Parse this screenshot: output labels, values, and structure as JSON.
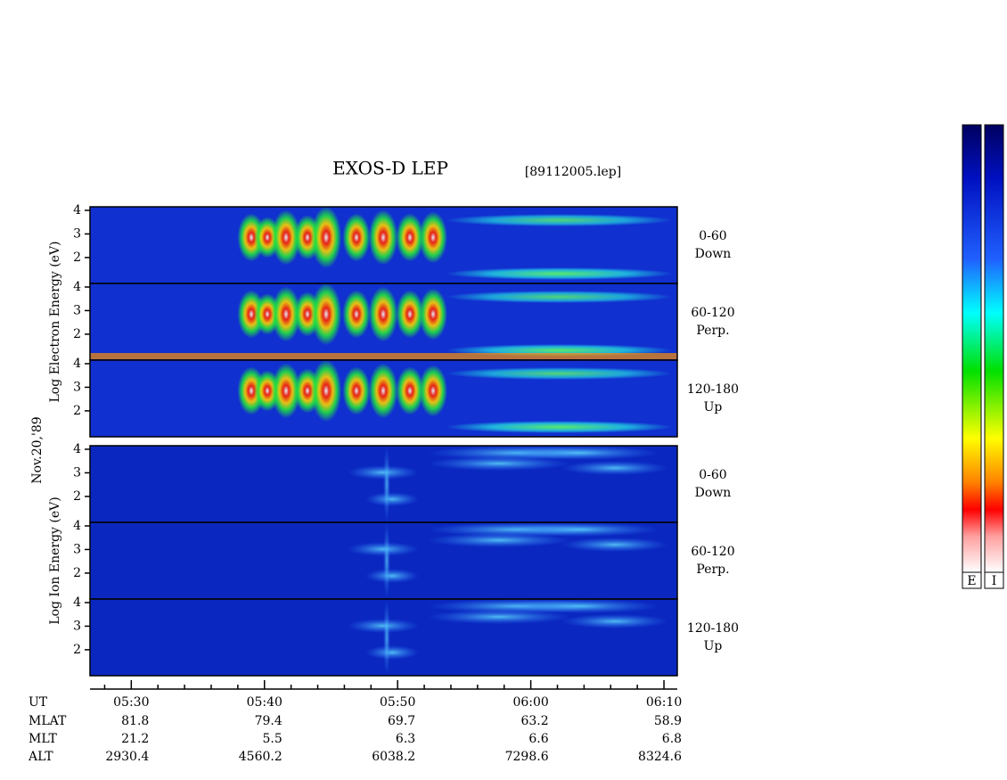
{
  "chart_data": {
    "type": "spectrogram",
    "title": "EXOS-D LEP",
    "file_label": "[89112005.lep]",
    "date_label": "Nov.20,'89",
    "ylim": [
      0.9,
      4.15
    ],
    "yticks": [
      2,
      3,
      4
    ],
    "xlim": [
      326.9,
      371
    ],
    "xticks": [
      {
        "value": 330,
        "label": "05:30"
      },
      {
        "value": 340,
        "label": "05:40"
      },
      {
        "value": 350,
        "label": "05:50"
      },
      {
        "value": 360,
        "label": "06:00"
      },
      {
        "value": 370,
        "label": "06:10"
      }
    ],
    "xminor_ticks": [
      328,
      332,
      334,
      336,
      338,
      342,
      344,
      346,
      348,
      352,
      354,
      356,
      358,
      362,
      364,
      366,
      368
    ],
    "groups": [
      {
        "ylabel": "Log  Electron  Energy (eV)",
        "panels": [
          {
            "range": "0-60",
            "direction": "Down"
          },
          {
            "range": "60-120",
            "direction": "Perp."
          },
          {
            "range": "120-180",
            "direction": "Up"
          }
        ]
      },
      {
        "ylabel": "Log  Ion  Energy (eV)",
        "panels": [
          {
            "range": "0-60",
            "direction": "Down"
          },
          {
            "range": "60-120",
            "direction": "Perp."
          },
          {
            "range": "120-180",
            "direction": "Up"
          }
        ]
      }
    ],
    "ut_label": "UT",
    "orbit_rows": [
      {
        "name": "MLAT",
        "values": [
          81.8,
          79.4,
          69.7,
          63.2,
          58.9
        ]
      },
      {
        "name": "MLT",
        "values": [
          21.2,
          5.5,
          6.3,
          6.6,
          6.8
        ]
      },
      {
        "name": "ALT",
        "values": [
          2930.4,
          4560.2,
          6038.2,
          7298.6,
          8324.6
        ]
      }
    ],
    "colorbar_labels": [
      "E",
      "I"
    ]
  }
}
